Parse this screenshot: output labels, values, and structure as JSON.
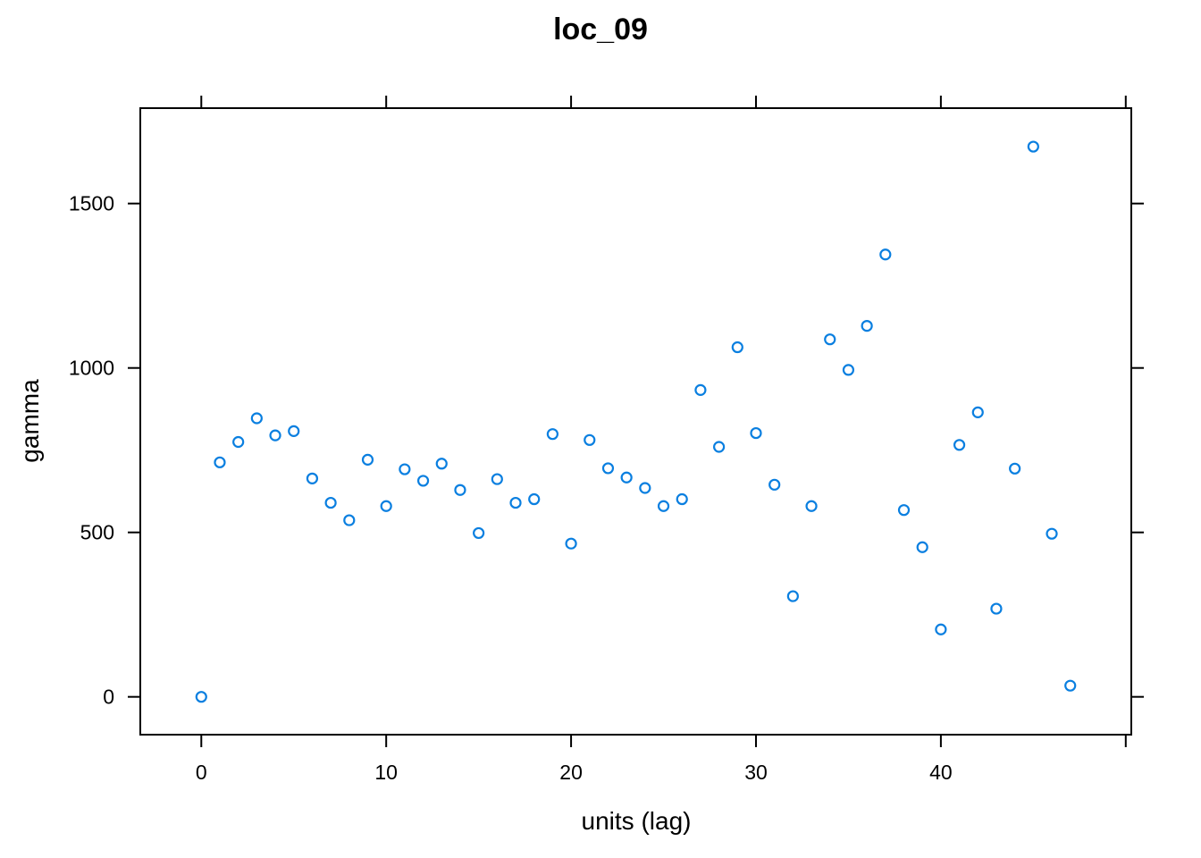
{
  "chart_data": {
    "type": "scatter",
    "title": "loc_09",
    "xlabel": "units (lag)",
    "ylabel": "gamma",
    "xlim": [
      -3.3,
      50.3
    ],
    "ylim": [
      -115,
      1790
    ],
    "xticks": [
      0,
      10,
      20,
      30,
      40
    ],
    "yticks": [
      0,
      500,
      1000,
      1500
    ],
    "point_color": "#0a7fe0",
    "grid": false,
    "series": [
      {
        "x": [
          0,
          1,
          2,
          3,
          4,
          5,
          6,
          7,
          8,
          9,
          10,
          11,
          12,
          13,
          14,
          15,
          16,
          17,
          18,
          19,
          20,
          21,
          22,
          23,
          24,
          25,
          26,
          27,
          28,
          29,
          30,
          31,
          32,
          33,
          34,
          35,
          36,
          37,
          38,
          39,
          40,
          41,
          42,
          43,
          44,
          45,
          46,
          47
        ],
        "y": [
          0,
          713,
          775,
          847,
          795,
          808,
          664,
          590,
          537,
          721,
          580,
          692,
          657,
          709,
          629,
          498,
          662,
          590,
          601,
          799,
          466,
          781,
          695,
          667,
          635,
          580,
          601,
          933,
          760,
          1063,
          802,
          645,
          306,
          580,
          1087,
          994,
          1128,
          1345,
          568,
          455,
          205,
          766,
          865,
          268,
          694,
          1673,
          496,
          34
        ]
      }
    ]
  }
}
